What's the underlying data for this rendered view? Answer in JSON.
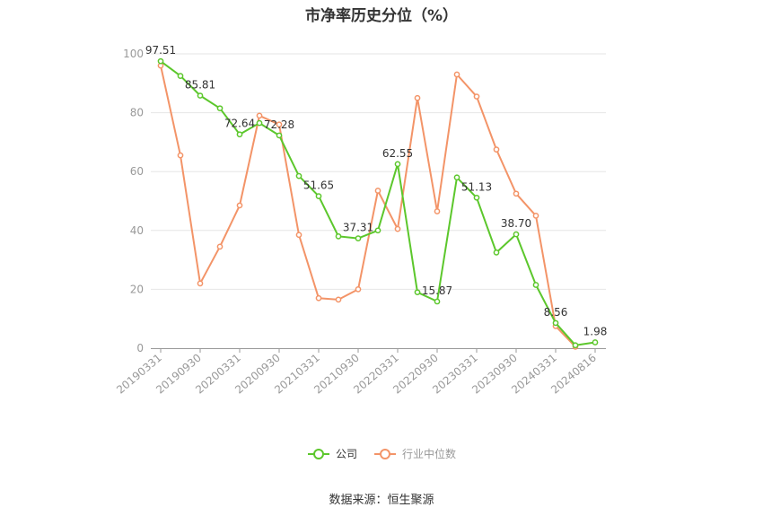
{
  "chart_data": {
    "type": "line",
    "title": "市净率历史分位（%）",
    "source": "数据来源：恒生聚源",
    "ylim": [
      0,
      100
    ],
    "yticks": [
      0,
      20,
      40,
      60,
      80,
      100
    ],
    "x_tick_labels": [
      "20190331",
      "20190930",
      "20200331",
      "20200930",
      "20210331",
      "20210930",
      "20220331",
      "20220930",
      "20230331",
      "20230930",
      "20240331",
      "20240816"
    ],
    "x": [
      "20190331",
      "20190630",
      "20190930",
      "20191231",
      "20200331",
      "20200630",
      "20200930",
      "20201231",
      "20210331",
      "20210630",
      "20210930",
      "20211231",
      "20220331",
      "20220630",
      "20220930",
      "20221231",
      "20230331",
      "20230630",
      "20230930",
      "20231231",
      "20240331",
      "20240630",
      "20240816"
    ],
    "series": [
      {
        "name": "公司",
        "color": "#5cc72c",
        "values": [
          97.51,
          92.5,
          85.81,
          81.5,
          72.64,
          76.5,
          72.28,
          58.5,
          51.65,
          38.0,
          37.31,
          40.0,
          62.55,
          19.0,
          15.87,
          58.0,
          51.13,
          32.5,
          38.7,
          21.5,
          8.56,
          1.0,
          1.98
        ],
        "labels": {
          "0": "97.51",
          "2": "85.81",
          "4": "72.64",
          "6": "72.28",
          "8": "51.65",
          "10": "37.31",
          "12": "62.55",
          "14": "15.87",
          "16": "51.13",
          "18": "38.70",
          "20": "8.56",
          "22": "1.98"
        }
      },
      {
        "name": "行业中位数",
        "color": "#f39468",
        "values": [
          96.0,
          65.5,
          22.0,
          34.5,
          48.5,
          79.0,
          76.0,
          38.5,
          17.0,
          16.5,
          20.0,
          53.5,
          40.5,
          85.0,
          46.5,
          93.0,
          85.5,
          67.5,
          52.5,
          45.0,
          7.5,
          0.5,
          null
        ]
      }
    ]
  }
}
